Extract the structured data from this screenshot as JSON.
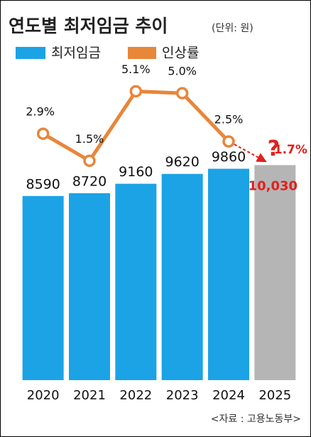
{
  "chart_data": {
    "type": "bar",
    "title": "연도별 최저임금 추이",
    "subtitle": "(단위: 원)",
    "categories": [
      "2020",
      "2021",
      "2022",
      "2023",
      "2024",
      "2025"
    ],
    "series": [
      {
        "name": "최저임금",
        "type": "bar",
        "color": "#1ba3e6",
        "colors": [
          "#1ba3e6",
          "#1ba3e6",
          "#1ba3e6",
          "#1ba3e6",
          "#1ba3e6",
          "#b5b5b5"
        ],
        "values": [
          8590,
          8720,
          9160,
          9620,
          9860,
          10030
        ],
        "value_labels": [
          "8590",
          "8720",
          "9160",
          "9620",
          "9860",
          "10,030"
        ],
        "forecast_color": "#e0201c"
      },
      {
        "name": "인상률",
        "type": "line",
        "axis": "y2",
        "color": "#e8863a",
        "values": [
          2.9,
          1.5,
          5.1,
          5.0,
          2.5,
          1.7
        ],
        "value_labels": [
          "2.9%",
          "1.5%",
          "5.1%",
          "5.0%",
          "2.5%",
          "1.7%"
        ],
        "forecast_color": "#e0201c"
      }
    ],
    "ylim": [
      0,
      12000
    ],
    "y2lim": [
      0,
      6
    ],
    "annotation": "?",
    "source": "<자료 : 고용노동부>"
  }
}
